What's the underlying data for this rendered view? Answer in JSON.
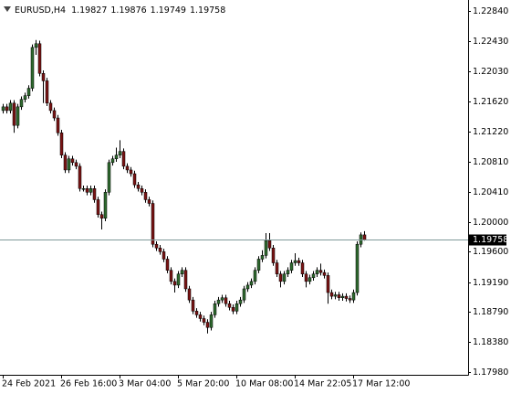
{
  "chart_data": {
    "type": "candlestick",
    "symbol": "EURUSD,H4",
    "categories": [
      "24 Feb 2021",
      null,
      null,
      null,
      null,
      null,
      null,
      null,
      null,
      null,
      null,
      null,
      null,
      null,
      null,
      null,
      "26 Feb 16:00",
      null,
      null,
      null,
      null,
      null,
      null,
      null,
      null,
      null,
      null,
      null,
      null,
      null,
      null,
      null,
      "3 Mar 04:00",
      null,
      null,
      null,
      null,
      null,
      null,
      null,
      null,
      null,
      null,
      null,
      null,
      null,
      null,
      null,
      "5 Mar 20:00",
      null,
      null,
      null,
      null,
      null,
      null,
      null,
      null,
      null,
      null,
      null,
      null,
      null,
      null,
      null,
      "10 Mar 08:00",
      null,
      null,
      null,
      null,
      null,
      null,
      null,
      null,
      null,
      null,
      null,
      null,
      null,
      null,
      null,
      "14 Mar 22:05",
      null,
      null,
      null,
      null,
      null,
      null,
      null,
      null,
      null,
      null,
      null,
      null,
      null,
      null,
      null,
      "17 Mar 12:00",
      null,
      null,
      null
    ],
    "open": [
      1.215,
      1.2155,
      1.215,
      1.216,
      1.213,
      1.2155,
      1.2165,
      1.217,
      1.218,
      1.2235,
      1.224,
      1.22,
      1.219,
      1.216,
      1.215,
      1.214,
      1.212,
      1.209,
      1.207,
      1.2085,
      1.208,
      1.2075,
      1.2045,
      1.2045,
      1.204,
      1.2045,
      1.203,
      1.201,
      1.2005,
      1.204,
      1.208,
      1.2085,
      1.209,
      1.2095,
      1.2075,
      1.207,
      1.2065,
      1.205,
      1.2045,
      1.204,
      1.203,
      1.2025,
      1.197,
      1.1965,
      1.196,
      1.195,
      1.1935,
      1.192,
      1.1915,
      1.193,
      1.1935,
      1.191,
      1.1895,
      1.188,
      1.1875,
      1.187,
      1.1865,
      1.1858,
      1.1875,
      1.189,
      1.1895,
      1.1898,
      1.189,
      1.1885,
      1.188,
      1.189,
      1.1895,
      1.191,
      1.1915,
      1.192,
      1.1935,
      1.195,
      1.1955,
      1.1975,
      1.1965,
      1.1945,
      1.193,
      1.192,
      1.193,
      1.1935,
      1.1945,
      1.1948,
      1.1945,
      1.193,
      1.192,
      1.1925,
      1.193,
      1.1935,
      1.1932,
      1.1928,
      1.1905,
      1.19,
      1.1902,
      1.1898,
      1.19,
      1.1897,
      1.1895,
      1.1905,
      1.197,
      1.19827
    ],
    "high": [
      1.2159,
      1.2159,
      1.2164,
      1.2164,
      1.2159,
      1.2169,
      1.2174,
      1.2184,
      1.2239,
      1.2245,
      1.2244,
      1.2204,
      1.2194,
      1.2164,
      1.2154,
      1.2144,
      1.2124,
      1.2094,
      1.2089,
      1.2089,
      1.2084,
      1.2079,
      1.2049,
      1.2049,
      1.2049,
      1.2049,
      1.2034,
      1.2014,
      1.2044,
      1.2084,
      1.2089,
      1.21,
      1.211,
      1.2099,
      1.2079,
      1.2074,
      1.2069,
      1.2054,
      1.2049,
      1.2044,
      1.2034,
      1.2029,
      1.1974,
      1.1969,
      1.1964,
      1.1954,
      1.1939,
      1.1924,
      1.1934,
      1.1939,
      1.1939,
      1.1914,
      1.1899,
      1.1884,
      1.1879,
      1.1874,
      1.1869,
      1.1879,
      1.1894,
      1.1899,
      1.1902,
      1.1902,
      1.1894,
      1.1889,
      1.1894,
      1.1899,
      1.1914,
      1.1919,
      1.1924,
      1.1939,
      1.1954,
      1.1962,
      1.1985,
      1.1985,
      1.1969,
      1.1949,
      1.1934,
      1.1934,
      1.1939,
      1.1949,
      1.1958,
      1.1952,
      1.1949,
      1.1934,
      1.1929,
      1.1934,
      1.1939,
      1.1944,
      1.1936,
      1.1932,
      1.1909,
      1.1906,
      1.1906,
      1.1904,
      1.1904,
      1.1901,
      1.1909,
      1.1974,
      1.1986,
      1.19876
    ],
    "low": [
      1.2146,
      1.2146,
      1.2146,
      1.212,
      1.2126,
      1.2151,
      1.2161,
      1.2166,
      1.2176,
      1.2225,
      1.2196,
      1.216,
      1.2156,
      1.2146,
      1.2136,
      1.2116,
      1.2086,
      1.2066,
      1.2066,
      1.2076,
      1.2071,
      1.2041,
      1.2041,
      1.2036,
      1.2036,
      1.2026,
      1.2006,
      1.199,
      1.2001,
      1.2036,
      1.2076,
      1.2081,
      1.2086,
      1.2071,
      1.2066,
      1.2061,
      1.2046,
      1.2041,
      1.2036,
      1.2026,
      1.2021,
      1.1966,
      1.1961,
      1.1956,
      1.1946,
      1.1931,
      1.1916,
      1.1905,
      1.1911,
      1.1926,
      1.1906,
      1.1891,
      1.1876,
      1.1871,
      1.1866,
      1.1861,
      1.185,
      1.1854,
      1.1871,
      1.1886,
      1.1891,
      1.1886,
      1.1881,
      1.1876,
      1.1876,
      1.1886,
      1.1891,
      1.1906,
      1.1911,
      1.1916,
      1.1931,
      1.1946,
      1.1951,
      1.1961,
      1.1941,
      1.1926,
      1.1912,
      1.1916,
      1.1926,
      1.1931,
      1.1941,
      1.1941,
      1.1926,
      1.1912,
      1.1916,
      1.1921,
      1.1926,
      1.1928,
      1.1924,
      1.189,
      1.1896,
      1.1896,
      1.1894,
      1.1894,
      1.1893,
      1.1891,
      1.1891,
      1.1901,
      1.1966,
      1.19749
    ],
    "close": [
      1.2155,
      1.215,
      1.216,
      1.213,
      1.2155,
      1.2165,
      1.217,
      1.218,
      1.2235,
      1.224,
      1.22,
      1.219,
      1.216,
      1.215,
      1.214,
      1.212,
      1.209,
      1.207,
      1.2085,
      1.208,
      1.2075,
      1.2045,
      1.2045,
      1.204,
      1.2045,
      1.203,
      1.201,
      1.2005,
      1.204,
      1.208,
      1.2085,
      1.209,
      1.2095,
      1.2075,
      1.207,
      1.2065,
      1.205,
      1.2045,
      1.204,
      1.203,
      1.2025,
      1.197,
      1.1965,
      1.196,
      1.195,
      1.1935,
      1.192,
      1.1915,
      1.193,
      1.1935,
      1.191,
      1.1895,
      1.188,
      1.1875,
      1.187,
      1.1865,
      1.1858,
      1.1875,
      1.189,
      1.1895,
      1.1898,
      1.189,
      1.1885,
      1.188,
      1.189,
      1.1895,
      1.191,
      1.1915,
      1.192,
      1.1935,
      1.195,
      1.1955,
      1.1975,
      1.1965,
      1.1945,
      1.193,
      1.192,
      1.193,
      1.1935,
      1.1945,
      1.1948,
      1.1945,
      1.193,
      1.192,
      1.1925,
      1.193,
      1.1935,
      1.1932,
      1.1928,
      1.1905,
      1.19,
      1.1902,
      1.1898,
      1.19,
      1.1897,
      1.1895,
      1.1905,
      1.197,
      1.19827,
      1.19758
    ],
    "ylim": [
      1.17943,
      1.22988
    ],
    "yticks": [
      {
        "value": 1.1798,
        "label": "1.17980"
      },
      {
        "value": 1.1838,
        "label": "1.18380"
      },
      {
        "value": 1.1879,
        "label": "1.18790"
      },
      {
        "value": 1.1919,
        "label": "1.19190"
      },
      {
        "value": 1.196,
        "label": "1.19600"
      },
      {
        "value": 1.2,
        "label": "1.20000"
      },
      {
        "value": 1.2041,
        "label": "1.20410"
      },
      {
        "value": 1.2081,
        "label": "1.20810"
      },
      {
        "value": 1.2122,
        "label": "1.21220"
      },
      {
        "value": 1.2162,
        "label": "1.21620"
      },
      {
        "value": 1.2203,
        "label": "1.22030"
      },
      {
        "value": 1.2243,
        "label": "1.22430"
      },
      {
        "value": 1.2284,
        "label": "1.22840"
      }
    ],
    "bull_color": "#2f6a2f",
    "bear_color": "#7a1414",
    "price_line_color": "#7f9a9a"
  }
}
